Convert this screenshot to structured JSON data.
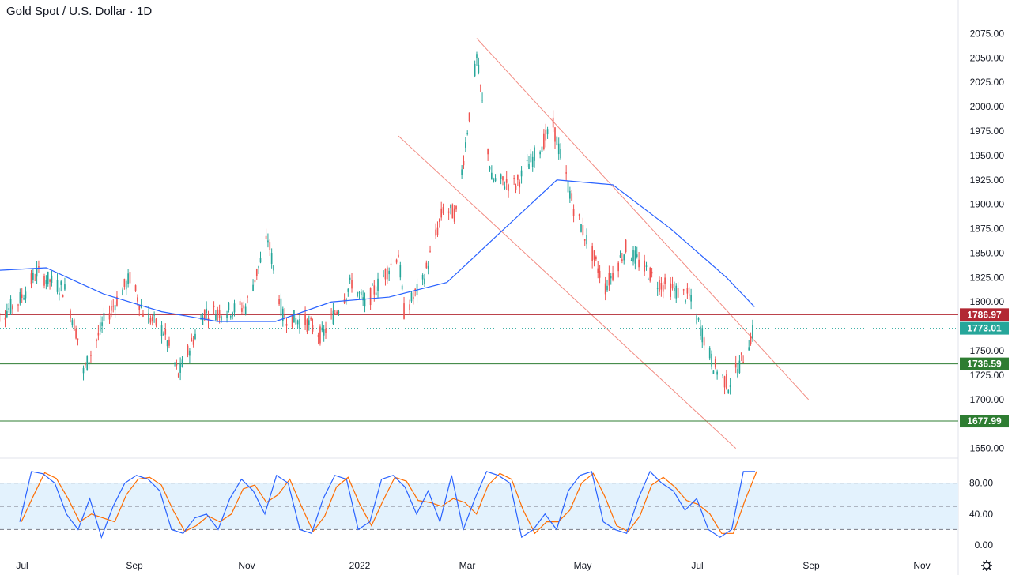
{
  "header": {
    "title": "Gold Spot / U.S. Dollar · 1D"
  },
  "colors": {
    "up": "#26a69a",
    "down": "#ef5350",
    "ma": "#2962ff",
    "channel": "#f28b82",
    "resistance": "#b22833",
    "support": "#2e7d32",
    "last_price": "#26a69a",
    "stoch_k": "#2962ff",
    "stoch_d": "#ff6d00",
    "stoch_band": "#e3f2fd"
  },
  "chart_data": [
    {
      "type": "candlestick",
      "title": "Gold Spot / U.S. Dollar · 1D",
      "xlabel": "",
      "ylabel": "",
      "ylim": [
        1640,
        2085
      ],
      "price_ticks": [
        "2075.00",
        "2050.00",
        "2025.00",
        "2000.00",
        "1975.00",
        "1950.00",
        "1925.00",
        "1900.00",
        "1875.00",
        "1850.00",
        "1825.00",
        "1800.00",
        "1775.00",
        "1750.00",
        "1725.00",
        "1700.00",
        "1675.00",
        "1650.00"
      ],
      "time_ticks": [
        "Jul",
        "Sep",
        "Nov",
        "2022",
        "Mar",
        "May",
        "Jul",
        "Sep",
        "Nov"
      ],
      "horizontal_levels": [
        {
          "label": "1786.97",
          "value": 1786.97,
          "color": "#b22833"
        },
        {
          "label": "1736.59",
          "value": 1736.59,
          "color": "#2e7d32"
        },
        {
          "label": "1677.99",
          "value": 1677.99,
          "color": "#2e7d32"
        }
      ],
      "last_price": {
        "label": "1773.01",
        "value": 1773.01
      },
      "channel": {
        "upper": [
          {
            "x": "2022-03-08",
            "y": 2070
          },
          {
            "x": "2022-09-02",
            "y": 1700
          }
        ],
        "lower": [
          {
            "x": "2022-01-25",
            "y": 1970
          },
          {
            "x": "2022-07-25",
            "y": 1650
          }
        ]
      },
      "anchor_points": [
        {
          "date": "2021-06-21",
          "close": 1780
        },
        {
          "date": "2021-07-05",
          "close": 1800
        },
        {
          "date": "2021-07-15",
          "close": 1830
        },
        {
          "date": "2021-07-30",
          "close": 1812
        },
        {
          "date": "2021-08-06",
          "close": 1763
        },
        {
          "date": "2021-08-09",
          "close": 1728
        },
        {
          "date": "2021-08-20",
          "close": 1780
        },
        {
          "date": "2021-09-03",
          "close": 1825
        },
        {
          "date": "2021-09-10",
          "close": 1790
        },
        {
          "date": "2021-09-21",
          "close": 1770
        },
        {
          "date": "2021-09-29",
          "close": 1725
        },
        {
          "date": "2021-10-13",
          "close": 1790
        },
        {
          "date": "2021-10-22",
          "close": 1790
        },
        {
          "date": "2021-11-04",
          "close": 1795
        },
        {
          "date": "2021-11-16",
          "close": 1865
        },
        {
          "date": "2021-11-24",
          "close": 1785
        },
        {
          "date": "2021-12-06",
          "close": 1780
        },
        {
          "date": "2021-12-15",
          "close": 1765
        },
        {
          "date": "2021-12-31",
          "close": 1820
        },
        {
          "date": "2022-01-07",
          "close": 1797
        },
        {
          "date": "2022-01-25",
          "close": 1850
        },
        {
          "date": "2022-01-28",
          "close": 1790
        },
        {
          "date": "2022-02-07",
          "close": 1820
        },
        {
          "date": "2022-02-18",
          "close": 1895
        },
        {
          "date": "2022-02-25",
          "close": 1890
        },
        {
          "date": "2022-03-08",
          "close": 2050
        },
        {
          "date": "2022-03-16",
          "close": 1925
        },
        {
          "date": "2022-03-29",
          "close": 1920
        },
        {
          "date": "2022-04-18",
          "close": 1980
        },
        {
          "date": "2022-04-29",
          "close": 1897
        },
        {
          "date": "2022-05-16",
          "close": 1815
        },
        {
          "date": "2022-05-27",
          "close": 1855
        },
        {
          "date": "2022-06-13",
          "close": 1820
        },
        {
          "date": "2022-06-30",
          "close": 1805
        },
        {
          "date": "2022-07-13",
          "close": 1735
        },
        {
          "date": "2022-07-21",
          "close": 1715
        },
        {
          "date": "2022-07-27",
          "close": 1735
        },
        {
          "date": "2022-08-04",
          "close": 1773
        }
      ],
      "sma": [
        {
          "date": "2021-06-21",
          "value": 1832
        },
        {
          "date": "2021-07-20",
          "value": 1835
        },
        {
          "date": "2021-08-20",
          "value": 1808
        },
        {
          "date": "2021-09-20",
          "value": 1790
        },
        {
          "date": "2021-10-20",
          "value": 1780
        },
        {
          "date": "2021-11-20",
          "value": 1780
        },
        {
          "date": "2021-12-20",
          "value": 1800
        },
        {
          "date": "2022-01-20",
          "value": 1805
        },
        {
          "date": "2022-02-20",
          "value": 1820
        },
        {
          "date": "2022-03-20",
          "value": 1870
        },
        {
          "date": "2022-04-20",
          "value": 1925
        },
        {
          "date": "2022-05-20",
          "value": 1920
        },
        {
          "date": "2022-06-20",
          "value": 1875
        },
        {
          "date": "2022-07-20",
          "value": 1825
        },
        {
          "date": "2022-08-04",
          "value": 1795
        }
      ]
    },
    {
      "type": "line",
      "title": "",
      "ylim": [
        0,
        100
      ],
      "y_ticks": [
        "80.00",
        "40.00",
        "0.00"
      ],
      "overbought": 80,
      "oversold": 20,
      "midline": 50,
      "series": [
        {
          "color": "#2962ff",
          "values": [
            30,
            95,
            92,
            80,
            40,
            20,
            60,
            10,
            50,
            80,
            90,
            85,
            70,
            20,
            15,
            35,
            40,
            20,
            60,
            85,
            70,
            40,
            90,
            80,
            20,
            15,
            60,
            90,
            85,
            20,
            30,
            85,
            90,
            75,
            40,
            70,
            30,
            90,
            20,
            60,
            95,
            90,
            80,
            10,
            20,
            40,
            20,
            70,
            90,
            95,
            30,
            20,
            15,
            60,
            95,
            80,
            70,
            45,
            60,
            20,
            10,
            20,
            95,
            95
          ]
        }
      ]
    }
  ]
}
